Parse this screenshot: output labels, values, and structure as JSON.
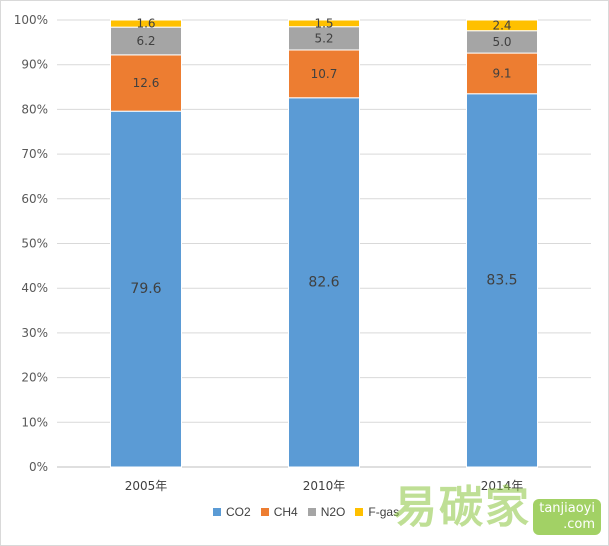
{
  "chart_data": {
    "type": "bar",
    "stacked": true,
    "percent_stacked": true,
    "categories": [
      "2005年",
      "2010年",
      "2014年"
    ],
    "series": [
      {
        "name": "CO2",
        "color": "#5b9bd5",
        "values": [
          79.6,
          82.6,
          83.5
        ]
      },
      {
        "name": "CH4",
        "color": "#ed7d31",
        "values": [
          12.6,
          10.7,
          9.1
        ]
      },
      {
        "name": "N2O",
        "color": "#a5a5a5",
        "values": [
          6.2,
          5.2,
          5.0
        ]
      },
      {
        "name": "F-gas",
        "color": "#ffc000",
        "values": [
          1.6,
          1.5,
          2.4
        ]
      }
    ],
    "yticks": [
      "0%",
      "10%",
      "20%",
      "30%",
      "40%",
      "50%",
      "60%",
      "70%",
      "80%",
      "90%",
      "100%"
    ],
    "ylim": [
      0,
      100
    ],
    "grid": true,
    "legend_position": "bottom"
  },
  "watermark": {
    "text": "易碳家",
    "badge_line1": "tanjiaoyi",
    "badge_line2": ".com"
  }
}
